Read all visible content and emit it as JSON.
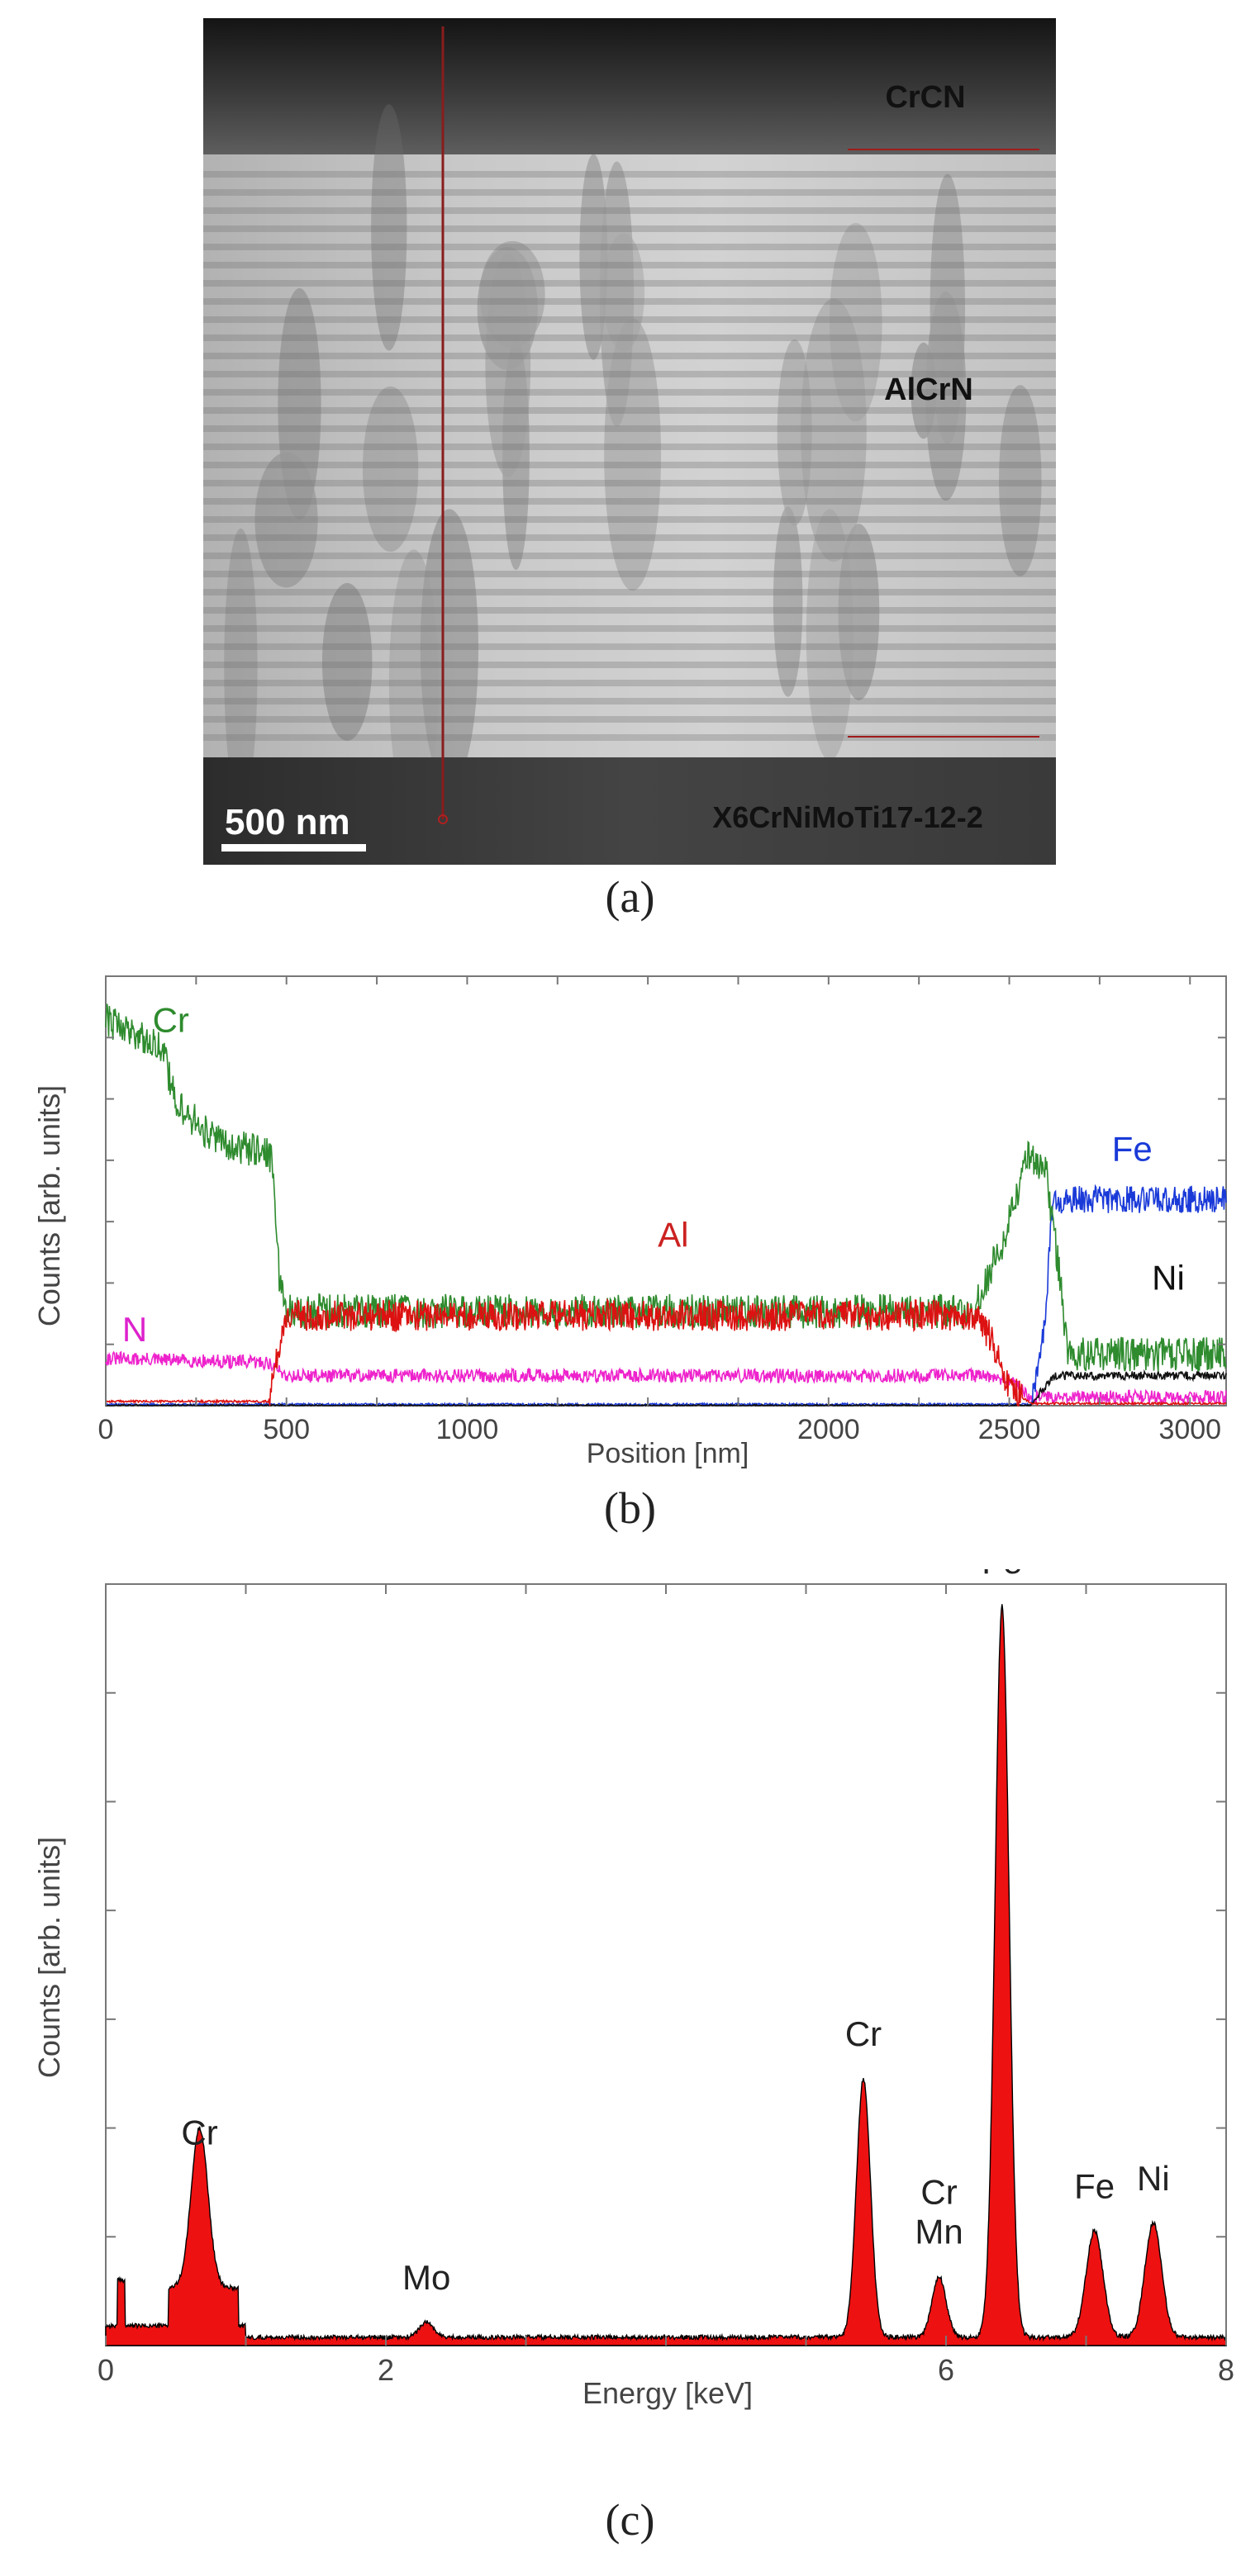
{
  "chart_data": [
    {
      "id": "a",
      "type": "image",
      "caption": "(a)",
      "layer_labels": [
        "CrCN",
        "AlCrN",
        "X6CrNiMoTi17-12-2"
      ],
      "scale_bar_label": "500 nm"
    },
    {
      "id": "b",
      "type": "line",
      "caption": "(b)",
      "xlabel": "Position  [nm]",
      "ylabel": "Counts [arb. units]",
      "xlim": [
        0,
        3100
      ],
      "ylim": [
        0,
        100
      ],
      "x_ticks": [
        0,
        500,
        1000,
        2000,
        2500,
        3000
      ],
      "series": [
        {
          "name": "Cr",
          "color": "#2e8b2e",
          "label_color": "#2e8b2e",
          "x": [
            0,
            150,
            200,
            300,
            460,
            480,
            500,
            2400,
            2480,
            2550,
            2600,
            2640,
            2660,
            3100
          ],
          "y": [
            90,
            84,
            70,
            62,
            58,
            30,
            22,
            22,
            38,
            58,
            56,
            30,
            12,
            12
          ]
        },
        {
          "name": "Al",
          "color": "#dd1111",
          "label_color": "#cc2222",
          "x": [
            0,
            450,
            490,
            500,
            2400,
            2450,
            2500,
            2560,
            3100
          ],
          "y": [
            1,
            1,
            18,
            21,
            21,
            16,
            4,
            0.5,
            0.5
          ]
        },
        {
          "name": "N",
          "color": "#ee22cc",
          "label_color": "#dd22cc",
          "x": [
            0,
            450,
            500,
            2400,
            2500,
            2560,
            3100
          ],
          "y": [
            11,
            10,
            7,
            7,
            6,
            2,
            2
          ]
        },
        {
          "name": "Fe",
          "color": "#1a3ad8",
          "label_color": "#1a3ad8",
          "x": [
            0,
            2560,
            2600,
            2620,
            3100
          ],
          "y": [
            0.3,
            0.3,
            20,
            48,
            48
          ]
        },
        {
          "name": "Ni",
          "color": "#111111",
          "label_color": "#111111",
          "x": [
            0,
            2560,
            2620,
            3100
          ],
          "y": [
            0,
            0,
            7,
            7
          ]
        }
      ]
    },
    {
      "id": "c",
      "type": "area",
      "caption": "(c)",
      "xlabel": "Energy  [keV]",
      "ylabel": "Counts [arb. units]",
      "xlim": [
        0,
        8
      ],
      "ylim": [
        0,
        100
      ],
      "x_ticks": [
        0,
        2,
        6,
        8
      ],
      "fill_color": "#ee1111",
      "peaks": [
        {
          "label": "Cr",
          "energy": 0.67,
          "height": 21,
          "width": 0.06
        },
        {
          "label": "Mo",
          "energy": 2.29,
          "height": 2,
          "width": 0.05
        },
        {
          "label": "Cr",
          "energy": 5.41,
          "height": 34,
          "width": 0.05
        },
        {
          "label": "Cr Mn",
          "energy": 5.95,
          "height": 8,
          "width": 0.05
        },
        {
          "label": "Fe",
          "energy": 6.4,
          "height": 96,
          "width": 0.05
        },
        {
          "label": "Fe",
          "energy": 7.06,
          "height": 14,
          "width": 0.06
        },
        {
          "label": "Ni",
          "energy": 7.48,
          "height": 15,
          "width": 0.06
        }
      ]
    }
  ]
}
